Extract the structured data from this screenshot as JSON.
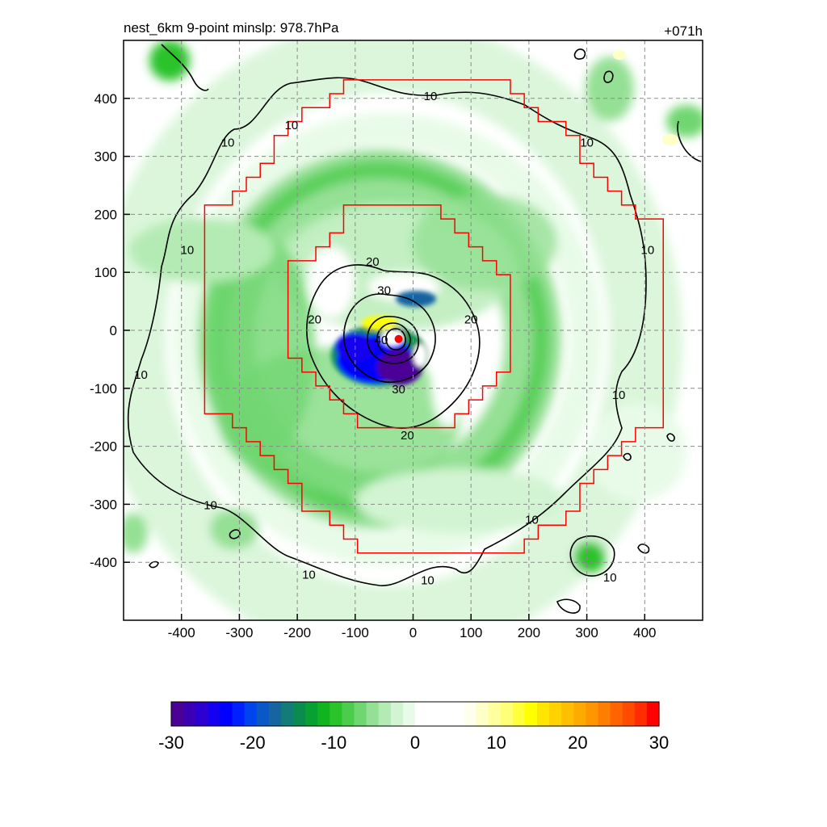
{
  "chart_data": {
    "type": "heatmap",
    "title_left": "nest_6km  9-point minslp: 978.7hPa",
    "title_right": "+071h",
    "xlim": [
      -500,
      500
    ],
    "ylim": [
      -500,
      500
    ],
    "x_ticks": [
      -400,
      -300,
      -200,
      -100,
      0,
      100,
      200,
      300,
      400
    ],
    "x_tick_labels": [
      "-400",
      "-300",
      "-200",
      "-100",
      "0",
      "100",
      "200",
      "300",
      "400"
    ],
    "y_ticks": [
      400,
      300,
      200,
      100,
      0,
      -100,
      -200,
      -300,
      -400
    ],
    "y_tick_labels": [
      "400",
      "300",
      "200",
      "100",
      "0",
      "-100",
      "-200",
      "-300",
      "-400"
    ],
    "grid": true,
    "storm_center": [
      -25,
      -15
    ],
    "contour_levels": [
      10,
      20,
      30,
      40
    ],
    "contour_labels": [
      {
        "text": "10",
        "x": -210,
        "y": 355
      },
      {
        "text": "10",
        "x": -320,
        "y": 325
      },
      {
        "text": "10",
        "x": 30,
        "y": 405
      },
      {
        "text": "10",
        "x": 300,
        "y": 325
      },
      {
        "text": "10",
        "x": -390,
        "y": 140
      },
      {
        "text": "10",
        "x": 405,
        "y": 140
      },
      {
        "text": "10",
        "x": -470,
        "y": -75
      },
      {
        "text": "10",
        "x": 355,
        "y": -110
      },
      {
        "text": "10",
        "x": -350,
        "y": -300
      },
      {
        "text": "10",
        "x": 205,
        "y": -325
      },
      {
        "text": "10",
        "x": -180,
        "y": -420
      },
      {
        "text": "10",
        "x": 25,
        "y": -430
      },
      {
        "text": "10",
        "x": 340,
        "y": -425
      },
      {
        "text": "20",
        "x": -70,
        "y": 120
      },
      {
        "text": "20",
        "x": -170,
        "y": 20
      },
      {
        "text": "20",
        "x": 100,
        "y": 20
      },
      {
        "text": "20",
        "x": -10,
        "y": -180
      },
      {
        "text": "30",
        "x": -50,
        "y": 70
      },
      {
        "text": "30",
        "x": -25,
        "y": -100
      },
      {
        "text": "40",
        "x": -55,
        "y": -15
      }
    ],
    "nest_inner_halfwidth": 230,
    "nest_outer_halfwidth": 430,
    "colorbar": {
      "min": -30,
      "max": 30,
      "ticks": [
        -30,
        -20,
        -10,
        0,
        10,
        20,
        30
      ],
      "tick_labels": [
        "-30",
        "-20",
        "-10",
        "0",
        "10",
        "20",
        "30"
      ],
      "colors": [
        "#4b0096",
        "#3c00b4",
        "#2d00d2",
        "#1400f0",
        "#0000ff",
        "#0020ff",
        "#0044ee",
        "#0a58c8",
        "#1664a0",
        "#147c78",
        "#0a8c50",
        "#08a032",
        "#0fb41e",
        "#2ac32a",
        "#4ccc4c",
        "#70d670",
        "#94e094",
        "#b4ebb4",
        "#d2f4d2",
        "#e8fbe8",
        "#ffffff",
        "#ffffff",
        "#ffffff",
        "#ffffff",
        "#ffffee",
        "#ffffc8",
        "#ffffa0",
        "#ffff78",
        "#ffff3c",
        "#ffff00",
        "#ffe600",
        "#ffd200",
        "#ffbe00",
        "#ffaa00",
        "#ff9600",
        "#ff7d00",
        "#ff6400",
        "#ff4b00",
        "#ff2d00",
        "#ff0000"
      ]
    },
    "legend": "bottom-colorbar"
  }
}
